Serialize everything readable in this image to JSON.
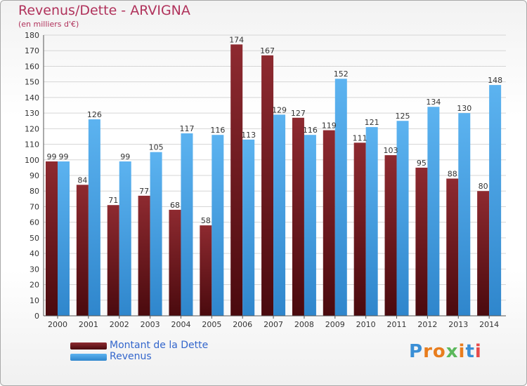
{
  "header": {
    "title": "Revenus/Dette - ARVIGNA",
    "subtitle": "(en milliers d'€)"
  },
  "legend": {
    "debt_label": "Montant de la Dette",
    "revenue_label": "Revenus"
  },
  "logo": {
    "text": "Proxiti"
  },
  "colors": {
    "debt": "#7a1f24",
    "revenue": "#4aa3e6",
    "title": "#b0325b",
    "legend_text": "#3366cc"
  },
  "chart_data": {
    "type": "bar",
    "title": "Revenus/Dette - ARVIGNA",
    "subtitle": "(en milliers d'€)",
    "xlabel": "",
    "ylabel": "",
    "ylim": [
      0,
      180
    ],
    "yticks": [
      0,
      10,
      20,
      30,
      40,
      50,
      60,
      70,
      80,
      90,
      100,
      110,
      120,
      130,
      140,
      150,
      160,
      170,
      180
    ],
    "grid": true,
    "legend_position": "bottom-left",
    "categories": [
      "2000",
      "2001",
      "2002",
      "2003",
      "2004",
      "2005",
      "2006",
      "2007",
      "2008",
      "2009",
      "2010",
      "2011",
      "2012",
      "2013",
      "2014"
    ],
    "series": [
      {
        "name": "Montant de la Dette",
        "values": [
          99,
          84,
          71,
          77,
          68,
          58,
          174,
          167,
          127,
          119,
          111,
          103,
          95,
          88,
          80
        ]
      },
      {
        "name": "Revenus",
        "values": [
          99,
          126,
          99,
          105,
          117,
          116,
          113,
          129,
          116,
          152,
          121,
          125,
          134,
          130,
          148
        ]
      }
    ]
  }
}
